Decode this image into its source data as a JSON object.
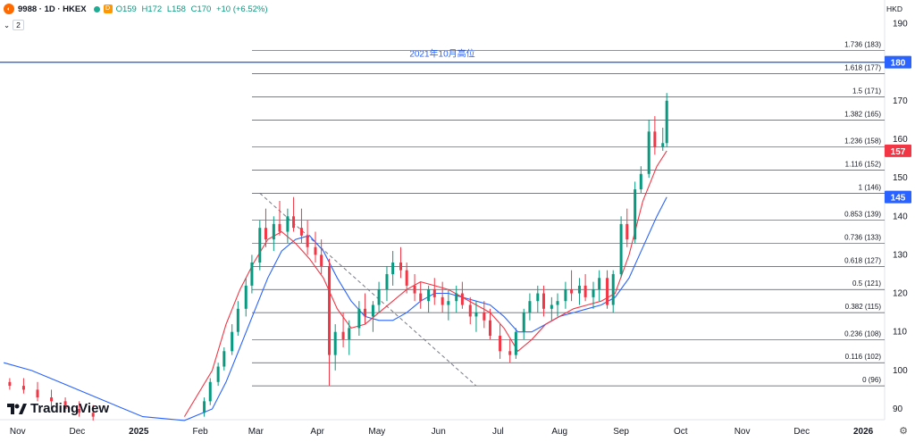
{
  "header": {
    "symbol_icon": "alibaba-logo-icon",
    "symbol": "9988 · 1D · HKEX",
    "badge_label": "D",
    "ohlc": {
      "o": "O159",
      "h": "H172",
      "l": "L158",
      "c": "C170",
      "change": "+10 (+6.52%)"
    },
    "indicator_count": "2",
    "currency": "HKD"
  },
  "colors": {
    "up": "#089981",
    "down": "#f23645",
    "ma_fast": "#f23645",
    "ma_slow": "#2962ff",
    "fib": "#131722",
    "hline": "#2962ff"
  },
  "watermark": "TradingView",
  "chart_data": {
    "type": "candlestick",
    "y_ticks": [
      190,
      180,
      170,
      160,
      150,
      140,
      130,
      120,
      110,
      100,
      90
    ],
    "ylim": [
      88,
      193
    ],
    "x_ticks": [
      "Nov",
      "Dec",
      "2025",
      "Feb",
      "Mar",
      "Apr",
      "May",
      "Jun",
      "Jul",
      "Aug",
      "Sep",
      "Oct",
      "Nov",
      "Dec",
      "2026"
    ],
    "fibonacci": [
      {
        "ratio": "1.736",
        "price": 183,
        "label": "1.736 (183)"
      },
      {
        "ratio": "1.618",
        "price": 177,
        "label": "1.618 (177)"
      },
      {
        "ratio": "1.5",
        "price": 171,
        "label": "1.5 (171)"
      },
      {
        "ratio": "1.382",
        "price": 165,
        "label": "1.382 (165)"
      },
      {
        "ratio": "1.236",
        "price": 158,
        "label": "1.236 (158)"
      },
      {
        "ratio": "1.116",
        "price": 152,
        "label": "1.116 (152)"
      },
      {
        "ratio": "1",
        "price": 146,
        "label": "1 (146)"
      },
      {
        "ratio": "0.853",
        "price": 139,
        "label": "0.853 (139)"
      },
      {
        "ratio": "0.736",
        "price": 133,
        "label": "0.736 (133)"
      },
      {
        "ratio": "0.618",
        "price": 127,
        "label": "0.618 (127)"
      },
      {
        "ratio": "0.5",
        "price": 121,
        "label": "0.5 (121)"
      },
      {
        "ratio": "0.382",
        "price": 115,
        "label": "0.382 (115)"
      },
      {
        "ratio": "0.236",
        "price": 108,
        "label": "0.236 (108)"
      },
      {
        "ratio": "0.116",
        "price": 102,
        "label": "0.116 (102)"
      },
      {
        "ratio": "0",
        "price": 96,
        "label": "0 (96)"
      }
    ],
    "horizontal_line": {
      "price": 180,
      "label": "2021年10月高位"
    },
    "price_badges": [
      {
        "value": "180",
        "price": 180,
        "color": "#2962ff"
      },
      {
        "value": "157",
        "price": 157,
        "color": "#f23645"
      },
      {
        "value": "145",
        "price": 145,
        "color": "#2962ff"
      }
    ],
    "trendline": {
      "from": {
        "date": "2025-03-03",
        "price": 146
      },
      "to": {
        "date": "2025-06-20",
        "price": 96
      }
    },
    "ma_fast": [
      [
        "2025-01-24",
        88
      ],
      [
        "2025-02-07",
        100
      ],
      [
        "2025-02-14",
        112
      ],
      [
        "2025-02-21",
        121
      ],
      [
        "2025-02-28",
        128
      ],
      [
        "2025-03-07",
        134
      ],
      [
        "2025-03-14",
        136
      ],
      [
        "2025-03-21",
        133
      ],
      [
        "2025-03-28",
        129
      ],
      [
        "2025-04-04",
        124
      ],
      [
        "2025-04-11",
        116
      ],
      [
        "2025-04-18",
        111
      ],
      [
        "2025-04-25",
        112
      ],
      [
        "2025-05-02",
        115
      ],
      [
        "2025-05-09",
        118
      ],
      [
        "2025-05-16",
        121
      ],
      [
        "2025-05-23",
        123
      ],
      [
        "2025-05-30",
        122
      ],
      [
        "2025-06-06",
        121
      ],
      [
        "2025-06-13",
        119
      ],
      [
        "2025-06-20",
        117
      ],
      [
        "2025-06-27",
        115
      ],
      [
        "2025-07-04",
        111
      ],
      [
        "2025-07-11",
        105
      ],
      [
        "2025-07-18",
        108
      ],
      [
        "2025-07-25",
        112
      ],
      [
        "2025-08-01",
        114
      ],
      [
        "2025-08-08",
        116
      ],
      [
        "2025-08-15",
        117
      ],
      [
        "2025-08-22",
        118
      ],
      [
        "2025-08-29",
        120
      ],
      [
        "2025-09-05",
        130
      ],
      [
        "2025-09-12",
        144
      ],
      [
        "2025-09-19",
        153
      ],
      [
        "2025-09-24",
        157
      ]
    ],
    "ma_slow": [
      [
        "2024-10-25",
        102
      ],
      [
        "2024-11-08",
        100
      ],
      [
        "2024-11-22",
        97
      ],
      [
        "2024-12-06",
        94
      ],
      [
        "2024-12-20",
        91
      ],
      [
        "2025-01-03",
        88
      ],
      [
        "2025-01-24",
        87
      ],
      [
        "2025-02-07",
        90
      ],
      [
        "2025-02-14",
        97
      ],
      [
        "2025-02-21",
        106
      ],
      [
        "2025-02-28",
        115
      ],
      [
        "2025-03-07",
        124
      ],
      [
        "2025-03-14",
        131
      ],
      [
        "2025-03-21",
        134
      ],
      [
        "2025-03-28",
        135
      ],
      [
        "2025-04-04",
        131
      ],
      [
        "2025-04-11",
        124
      ],
      [
        "2025-04-18",
        118
      ],
      [
        "2025-04-25",
        114
      ],
      [
        "2025-05-02",
        113
      ],
      [
        "2025-05-09",
        113
      ],
      [
        "2025-05-16",
        115
      ],
      [
        "2025-05-23",
        118
      ],
      [
        "2025-05-30",
        120
      ],
      [
        "2025-06-06",
        120
      ],
      [
        "2025-06-13",
        119
      ],
      [
        "2025-06-20",
        118
      ],
      [
        "2025-06-27",
        117
      ],
      [
        "2025-07-04",
        114
      ],
      [
        "2025-07-11",
        110
      ],
      [
        "2025-07-18",
        110
      ],
      [
        "2025-07-25",
        112
      ],
      [
        "2025-08-01",
        114
      ],
      [
        "2025-08-08",
        115
      ],
      [
        "2025-08-15",
        116
      ],
      [
        "2025-08-22",
        117
      ],
      [
        "2025-08-29",
        119
      ],
      [
        "2025-09-05",
        124
      ],
      [
        "2025-09-12",
        132
      ],
      [
        "2025-09-19",
        140
      ],
      [
        "2025-09-24",
        145
      ]
    ],
    "candles": [
      [
        "2024-10-28",
        97,
        98,
        95,
        96
      ],
      [
        "2024-11-04",
        96,
        98,
        94,
        95
      ],
      [
        "2024-11-11",
        95,
        97,
        92,
        93
      ],
      [
        "2024-11-18",
        93,
        95,
        90,
        92
      ],
      [
        "2024-11-25",
        92,
        93,
        89,
        90
      ],
      [
        "2024-12-02",
        90,
        92,
        88,
        89
      ],
      [
        "2024-12-09",
        89,
        91,
        87,
        88
      ],
      [
        "2025-02-03",
        89,
        93,
        88,
        92
      ],
      [
        "2025-02-06",
        92,
        98,
        91,
        97
      ],
      [
        "2025-02-10",
        97,
        102,
        96,
        101
      ],
      [
        "2025-02-13",
        101,
        106,
        100,
        105
      ],
      [
        "2025-02-17",
        105,
        112,
        104,
        110
      ],
      [
        "2025-02-20",
        110,
        118,
        109,
        116
      ],
      [
        "2025-02-24",
        116,
        124,
        114,
        122
      ],
      [
        "2025-02-27",
        122,
        130,
        120,
        128
      ],
      [
        "2025-03-03",
        128,
        139,
        126,
        137
      ],
      [
        "2025-03-06",
        137,
        142,
        132,
        134
      ],
      [
        "2025-03-10",
        134,
        140,
        131,
        138
      ],
      [
        "2025-03-13",
        138,
        144,
        135,
        136
      ],
      [
        "2025-03-17",
        136,
        142,
        133,
        140
      ],
      [
        "2025-03-20",
        140,
        145,
        136,
        137
      ],
      [
        "2025-03-24",
        137,
        142,
        133,
        135
      ],
      [
        "2025-03-27",
        135,
        139,
        130,
        132
      ],
      [
        "2025-03-31",
        132,
        136,
        128,
        130
      ],
      [
        "2025-04-03",
        130,
        134,
        125,
        127
      ],
      [
        "2025-04-07",
        127,
        129,
        96,
        104
      ],
      [
        "2025-04-10",
        104,
        112,
        100,
        110
      ],
      [
        "2025-04-14",
        110,
        115,
        106,
        108
      ],
      [
        "2025-04-17",
        108,
        113,
        104,
        111
      ],
      [
        "2025-04-22",
        111,
        118,
        109,
        116
      ],
      [
        "2025-04-25",
        116,
        120,
        112,
        114
      ],
      [
        "2025-04-29",
        114,
        118,
        110,
        117
      ],
      [
        "2025-05-02",
        117,
        123,
        115,
        121
      ],
      [
        "2025-05-06",
        121,
        127,
        118,
        125
      ],
      [
        "2025-05-09",
        125,
        131,
        122,
        128
      ],
      [
        "2025-05-13",
        128,
        132,
        124,
        126
      ],
      [
        "2025-05-16",
        126,
        128,
        120,
        122
      ],
      [
        "2025-05-20",
        122,
        125,
        118,
        120
      ],
      [
        "2025-05-23",
        120,
        123,
        116,
        118
      ],
      [
        "2025-05-27",
        118,
        122,
        115,
        121
      ],
      [
        "2025-05-30",
        121,
        124,
        117,
        119
      ],
      [
        "2025-06-03",
        119,
        123,
        115,
        117
      ],
      [
        "2025-06-06",
        117,
        121,
        113,
        118
      ],
      [
        "2025-06-10",
        118,
        122,
        115,
        120
      ],
      [
        "2025-06-13",
        120,
        123,
        116,
        117
      ],
      [
        "2025-06-17",
        117,
        119,
        112,
        114
      ],
      [
        "2025-06-20",
        114,
        118,
        110,
        115
      ],
      [
        "2025-06-24",
        115,
        118,
        111,
        113
      ],
      [
        "2025-06-27",
        113,
        116,
        108,
        109
      ],
      [
        "2025-07-02",
        109,
        112,
        103,
        105
      ],
      [
        "2025-07-07",
        105,
        108,
        102,
        104
      ],
      [
        "2025-07-10",
        104,
        111,
        103,
        110
      ],
      [
        "2025-07-14",
        110,
        116,
        108,
        115
      ],
      [
        "2025-07-17",
        115,
        120,
        113,
        118
      ],
      [
        "2025-07-21",
        118,
        122,
        115,
        120
      ],
      [
        "2025-07-24",
        120,
        122,
        114,
        116
      ],
      [
        "2025-07-28",
        116,
        119,
        113,
        117
      ],
      [
        "2025-07-31",
        117,
        120,
        114,
        118
      ],
      [
        "2025-08-04",
        118,
        123,
        116,
        121
      ],
      [
        "2025-08-07",
        121,
        126,
        118,
        120
      ],
      [
        "2025-08-11",
        120,
        124,
        117,
        122
      ],
      [
        "2025-08-14",
        122,
        125,
        118,
        119
      ],
      [
        "2025-08-18",
        119,
        123,
        116,
        121
      ],
      [
        "2025-08-21",
        121,
        126,
        118,
        124
      ],
      [
        "2025-08-25",
        124,
        126,
        116,
        117
      ],
      [
        "2025-08-28",
        117,
        126,
        115,
        125
      ],
      [
        "2025-09-01",
        125,
        140,
        124,
        138
      ],
      [
        "2025-09-04",
        138,
        142,
        132,
        134
      ],
      [
        "2025-09-08",
        134,
        149,
        133,
        147
      ],
      [
        "2025-09-11",
        147,
        153,
        146,
        151
      ],
      [
        "2025-09-15",
        151,
        165,
        150,
        162
      ],
      [
        "2025-09-18",
        162,
        166,
        156,
        158
      ],
      [
        "2025-09-22",
        158,
        163,
        157,
        159
      ],
      [
        "2025-09-24",
        159,
        172,
        158,
        170
      ]
    ]
  }
}
